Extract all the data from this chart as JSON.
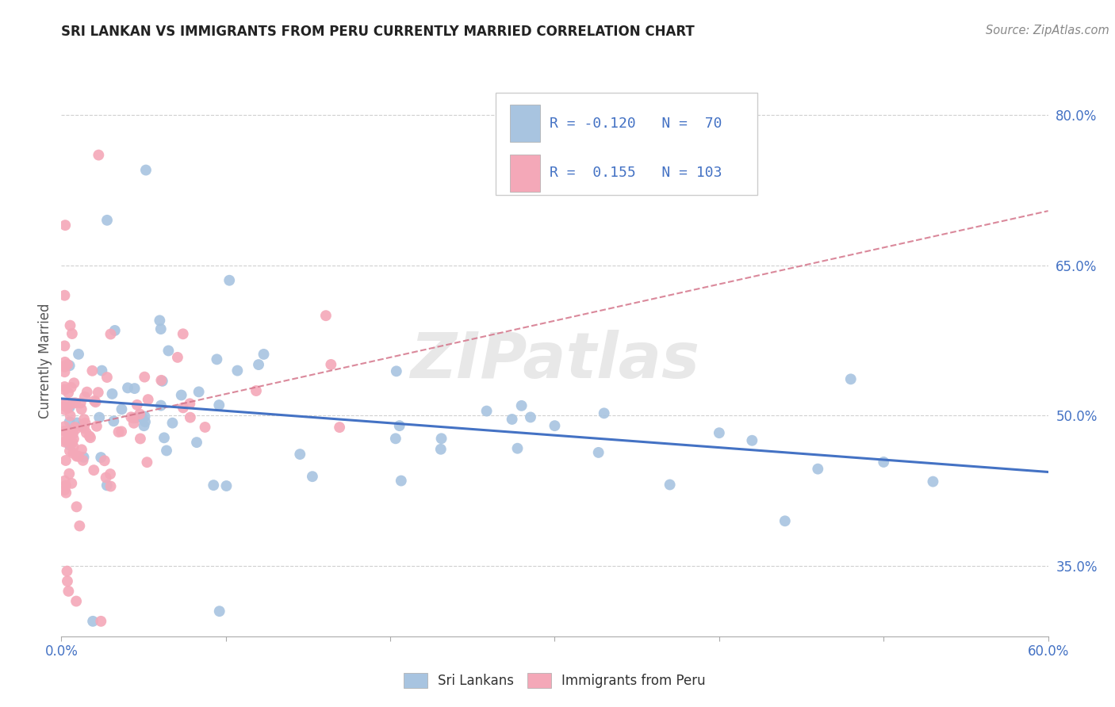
{
  "title": "SRI LANKAN VS IMMIGRANTS FROM PERU CURRENTLY MARRIED CORRELATION CHART",
  "source": "Source: ZipAtlas.com",
  "ylabel": "Currently Married",
  "x_min": 0.0,
  "x_max": 0.6,
  "y_min": 0.28,
  "y_max": 0.83,
  "x_ticks": [
    0.0,
    0.1,
    0.2,
    0.3,
    0.4,
    0.5,
    0.6
  ],
  "x_tick_labels": [
    "0.0%",
    "",
    "",
    "",
    "",
    "",
    "60.0%"
  ],
  "y_ticks": [
    0.35,
    0.5,
    0.65,
    0.8
  ],
  "y_tick_labels": [
    "35.0%",
    "50.0%",
    "65.0%",
    "80.0%"
  ],
  "sri_lankans_color": "#a8c4e0",
  "peru_color": "#f4a8b8",
  "trend_sri_color": "#4472c4",
  "trend_peru_color": "#d4748a",
  "watermark": "ZIPatlas",
  "legend_label_1": "Sri Lankans",
  "legend_label_2": "Immigrants from Peru",
  "r1": "-0.120",
  "n1": "70",
  "r2": "0.155",
  "n2": "103"
}
